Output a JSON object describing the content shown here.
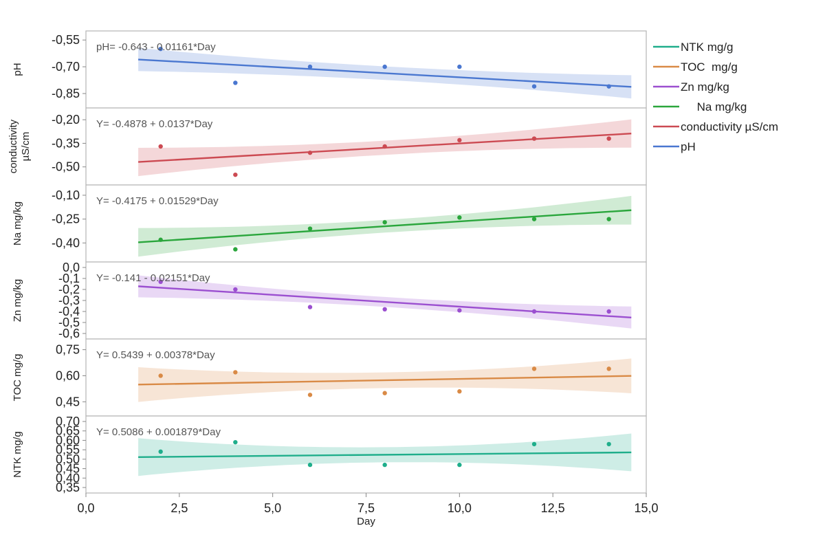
{
  "colors": {
    "NTK": "#1fae8b",
    "TOC": "#d98a46",
    "Zn": "#9b4fd0",
    "Na": "#2aa63c",
    "conductivity": "#cc4a52",
    "pH": "#4a77d0"
  },
  "legend": [
    {
      "key": "NTK",
      "label": "NTK mg/g"
    },
    {
      "key": "TOC",
      "label": "TOC  mg/g"
    },
    {
      "key": "Zn",
      "label": "Zn mg/kg"
    },
    {
      "key": "Na",
      "label": "     Na mg/kg"
    },
    {
      "key": "conductivity",
      "label": "conductivity µS/cm"
    },
    {
      "key": "pH",
      "label": "pH"
    }
  ],
  "chart_data": {
    "type": "scatter",
    "xlabel": "Day",
    "xlim": [
      0,
      15
    ],
    "xticks": [
      "0,0",
      "2,5",
      "5,0",
      "7,5",
      "10,0",
      "12,5",
      "15,0"
    ],
    "x": [
      2,
      4,
      6,
      8,
      10,
      12,
      14
    ],
    "fit_range": [
      1.4,
      14.6
    ],
    "panels": [
      {
        "key": "pH",
        "ylabel": [
          "pH"
        ],
        "ylim": [
          -0.9,
          -0.53
        ],
        "ytick_values": [
          -0.55,
          -0.7,
          -0.85
        ],
        "yticks": [
          "-0,55",
          "-0,70",
          "-0,85"
        ],
        "equation": "pH= -0.643 - 0.01161*Day",
        "intercept": -0.643,
        "slope": -0.01161,
        "ci_center": 0.038,
        "ci_edge": 0.065,
        "values": [
          -0.6,
          -0.79,
          -0.7,
          -0.7,
          -0.7,
          -0.81,
          -0.81
        ]
      },
      {
        "key": "conductivity",
        "ylabel": [
          "conductivity",
          "µS/cm"
        ],
        "ylim": [
          -0.58,
          -0.16
        ],
        "ytick_values": [
          -0.2,
          -0.35,
          -0.5
        ],
        "yticks": [
          "-0,20",
          "-0,35",
          "-0,50"
        ],
        "equation": "Y= -0.4878 + 0.0137*Day",
        "intercept": -0.4878,
        "slope": 0.0137,
        "ci_center": 0.045,
        "ci_edge": 0.09,
        "values": [
          -0.37,
          -0.55,
          -0.41,
          -0.37,
          -0.33,
          -0.32,
          -0.32
        ]
      },
      {
        "key": "Na",
        "ylabel": [
          "Na mg/kg"
        ],
        "ylim": [
          -0.485,
          -0.07
        ],
        "ytick_values": [
          -0.1,
          -0.25,
          -0.4
        ],
        "yticks": [
          "-0,10",
          "-0,25",
          "-0,40"
        ],
        "equation": "Y= -0.4175 + 0.01529*Day",
        "intercept": -0.4175,
        "slope": 0.01529,
        "ci_center": 0.04,
        "ci_edge": 0.09,
        "values": [
          -0.38,
          -0.44,
          -0.31,
          -0.27,
          -0.24,
          -0.25,
          -0.25
        ]
      },
      {
        "key": "Zn",
        "ylabel": [
          "Zn mg/kg"
        ],
        "ylim": [
          -0.6,
          0.0
        ],
        "ytick_values": [
          0.0,
          -0.1,
          -0.2,
          -0.3,
          -0.4,
          -0.5,
          -0.6
        ],
        "yticks": [
          "0,0",
          "-0,1",
          "-0,2",
          "-0,3",
          "-0,4",
          "-0,5",
          "-0,6"
        ],
        "equation": "Y= -0.141 - 0.02151*Day",
        "intercept": -0.141,
        "slope": -0.02151,
        "ci_center": 0.045,
        "ci_edge": 0.1,
        "values": [
          -0.13,
          -0.2,
          -0.36,
          -0.38,
          -0.39,
          -0.4,
          -0.4
        ]
      },
      {
        "key": "TOC",
        "ylabel": [
          "TOC  mg/g"
        ],
        "ylim": [
          0.4,
          0.78
        ],
        "ytick_values": [
          0.75,
          0.6,
          0.45
        ],
        "yticks": [
          "0,75",
          "0,60",
          "0,45"
        ],
        "equation": "Y= 0.5439 + 0.00378*Day",
        "intercept": 0.5439,
        "slope": 0.00378,
        "ci_center": 0.045,
        "ci_edge": 0.1,
        "values": [
          0.6,
          0.62,
          0.49,
          0.5,
          0.51,
          0.64,
          0.64
        ]
      },
      {
        "key": "NTK",
        "ylabel": [
          "NTK mg/g"
        ],
        "ylim": [
          0.35,
          0.7
        ],
        "ytick_values": [
          0.7,
          0.65,
          0.6,
          0.55,
          0.5,
          0.45,
          0.4,
          0.35
        ],
        "yticks": [
          "0,70",
          "0,65",
          "0,60",
          "0,55",
          "0,50",
          "0,45",
          "0,40",
          "0,35"
        ],
        "equation": "Y= 0.5086 + 0.001879*Day",
        "intercept": 0.5086,
        "slope": 0.001879,
        "ci_center": 0.04,
        "ci_edge": 0.1,
        "values": [
          0.54,
          0.59,
          0.47,
          0.47,
          0.47,
          0.58,
          0.58
        ]
      }
    ]
  }
}
